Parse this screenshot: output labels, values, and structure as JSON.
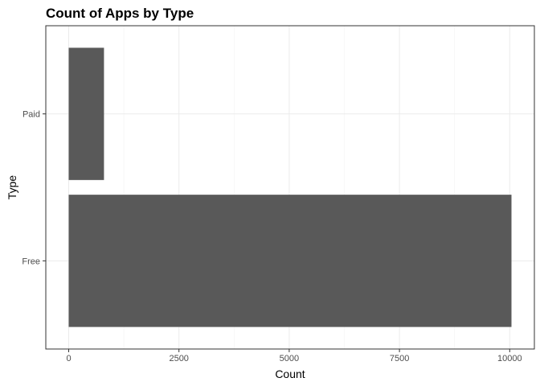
{
  "chart_data": {
    "type": "bar",
    "orientation": "horizontal",
    "title": "Count of Apps by Type",
    "xlabel": "Count",
    "ylabel": "Type",
    "categories": [
      "Free",
      "Paid"
    ],
    "values": [
      10040,
      800
    ],
    "xlim": [
      0,
      10500
    ],
    "xticks": [
      0,
      2500,
      5000,
      7500,
      10000
    ],
    "xtick_labels": [
      "0",
      "2500",
      "5000",
      "7500",
      "10000"
    ],
    "bar_color": "#595959",
    "grid": true,
    "legend": "none"
  }
}
